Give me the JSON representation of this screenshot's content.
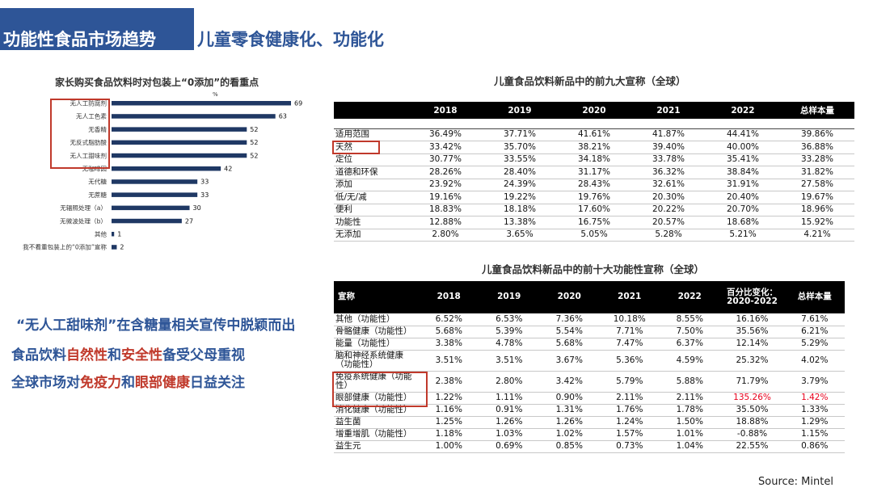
{
  "header": {
    "title": "功能性食品市场趋势",
    "subtitle": "儿童零食健康化、功能化"
  },
  "colors": {
    "accent": "#2e5597",
    "bar": "#1f3864",
    "highlight": "#c0392b",
    "red_text": "#e8001c"
  },
  "chart_data": [
    {
      "type": "bar",
      "orientation": "horizontal",
      "title": "家长购买食品饮料时对包装上“0添加”的看重点",
      "unit": "%",
      "categories": [
        "无人工防腐剂",
        "无人工色素",
        "无香精",
        "无反式脂肪酸",
        "无人工甜味剂",
        "无咖啡因",
        "无代糖",
        "无蔗糖",
        "无辐照处理（a）",
        "无微波处理（b）",
        "其他",
        "我不看重包装上的“0添加”宣称"
      ],
      "values": [
        69,
        63,
        52,
        52,
        52,
        42,
        33,
        33,
        30,
        27,
        1,
        2
      ],
      "xlim": [
        0,
        69
      ]
    },
    {
      "type": "table",
      "title": "儿童食品饮料新品中的前九大宣称（全球）",
      "columns": [
        "",
        "2018",
        "2019",
        "2020",
        "2021",
        "2022",
        "总样本量"
      ],
      "rows": [
        [
          "适用范围",
          "36.49%",
          "37.71%",
          "41.61%",
          "41.87%",
          "44.41%",
          "39.86%"
        ],
        [
          "天然",
          "33.42%",
          "35.70%",
          "38.21%",
          "39.40%",
          "40.00%",
          "36.88%"
        ],
        [
          "定位",
          "30.77%",
          "33.55%",
          "34.18%",
          "33.78%",
          "35.41%",
          "33.28%"
        ],
        [
          "道德和环保",
          "28.26%",
          "28.40%",
          "31.17%",
          "36.32%",
          "38.84%",
          "31.82%"
        ],
        [
          "添加",
          "23.92%",
          "24.39%",
          "28.43%",
          "32.61%",
          "31.91%",
          "27.58%"
        ],
        [
          "低/无/减",
          "19.16%",
          "19.22%",
          "19.76%",
          "20.30%",
          "20.40%",
          "19.67%"
        ],
        [
          "便利",
          "18.83%",
          "18.18%",
          "17.60%",
          "20.22%",
          "20.70%",
          "18.96%"
        ],
        [
          "功能性",
          "12.88%",
          "13.38%",
          "16.75%",
          "20.57%",
          "18.68%",
          "15.92%"
        ],
        [
          "无添加",
          "2.80%",
          "3.65%",
          "5.05%",
          "5.28%",
          "5.21%",
          "4.21%"
        ]
      ]
    },
    {
      "type": "table",
      "title": "儿童食品饮料新品中的前十大功能性宣称（全球）",
      "columns": [
        "宣称",
        "2018",
        "2019",
        "2020",
        "2021",
        "2022",
        "百分比变化：2020-2022",
        "总样本量"
      ],
      "rows": [
        [
          "其他（功能性）",
          "6.52%",
          "6.53%",
          "7.36%",
          "10.18%",
          "8.55%",
          "16.16%",
          "7.61%"
        ],
        [
          "骨骼健康（功能性）",
          "5.68%",
          "5.39%",
          "5.54%",
          "7.71%",
          "7.50%",
          "35.56%",
          "6.21%"
        ],
        [
          "能量（功能性）",
          "3.38%",
          "4.78%",
          "5.68%",
          "7.47%",
          "6.37%",
          "12.14%",
          "5.29%"
        ],
        [
          "脑和神经系统健康（功能性）",
          "3.51%",
          "3.51%",
          "3.67%",
          "5.36%",
          "4.59%",
          "25.32%",
          "4.02%"
        ],
        [
          "免疫系统健康（功能性）",
          "2.38%",
          "2.80%",
          "3.42%",
          "5.79%",
          "5.88%",
          "71.79%",
          "3.79%"
        ],
        [
          "眼部健康（功能性）",
          "1.22%",
          "1.11%",
          "0.90%",
          "2.11%",
          "2.11%",
          "135.26%",
          "1.42%"
        ],
        [
          "消化健康（功能性）",
          "1.16%",
          "0.91%",
          "1.31%",
          "1.76%",
          "1.78%",
          "35.50%",
          "1.33%"
        ],
        [
          "益生菌",
          "1.25%",
          "1.26%",
          "1.26%",
          "1.24%",
          "1.50%",
          "18.88%",
          "1.29%"
        ],
        [
          "增重增肌（功能性）",
          "1.18%",
          "1.03%",
          "1.02%",
          "1.57%",
          "1.01%",
          "-0.88%",
          "1.15%"
        ],
        [
          "益生元",
          "1.00%",
          "0.69%",
          "0.85%",
          "0.73%",
          "1.04%",
          "22.55%",
          "0.86%"
        ]
      ]
    }
  ],
  "messages": {
    "line1": "“无人工甜味剂”在含糖量相关宣传中脱颖而出",
    "line2": {
      "a": "食品饮料",
      "b": "自然性",
      "c": "和",
      "d": "安全性",
      "e": "备受父母重视"
    },
    "line3": {
      "a": "全球市场对",
      "b": "免疫力",
      "c": "和",
      "d": "眼部健康",
      "e": "日益关注"
    }
  },
  "source": "Source:  Mintel"
}
